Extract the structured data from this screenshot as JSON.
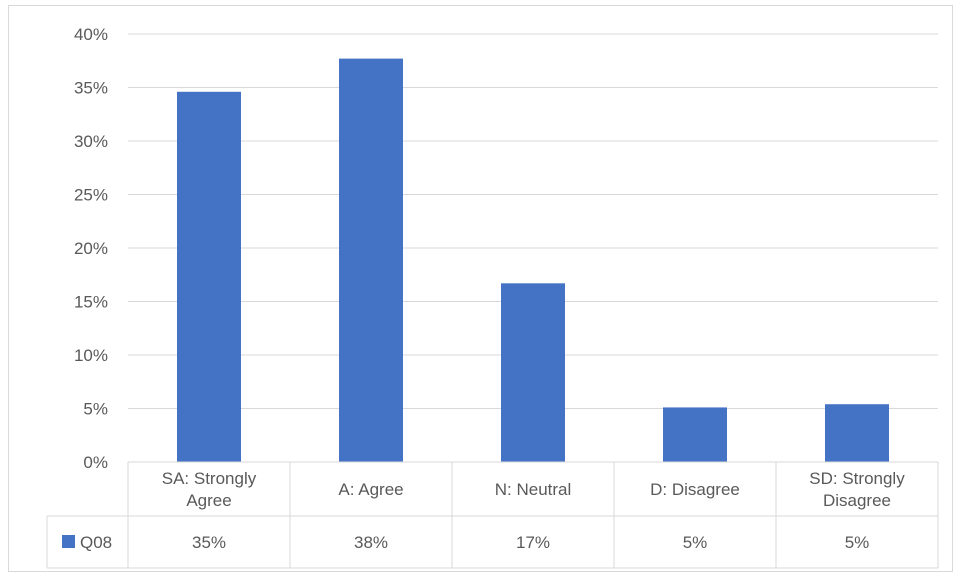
{
  "chart_data": {
    "type": "bar",
    "categories": [
      [
        "SA: Strongly",
        "Agree"
      ],
      [
        "A: Agree"
      ],
      [
        "N: Neutral"
      ],
      [
        "D: Disagree"
      ],
      [
        "SD: Strongly",
        "Disagree"
      ]
    ],
    "series": [
      {
        "name": "Q08",
        "values": [
          34.6,
          37.7,
          16.7,
          5.1,
          5.4
        ],
        "table_labels": [
          "35%",
          "38%",
          "17%",
          "5%",
          "5%"
        ]
      }
    ],
    "yticks": [
      "0%",
      "5%",
      "10%",
      "15%",
      "20%",
      "25%",
      "30%",
      "35%",
      "40%"
    ],
    "ylim": [
      0,
      40
    ],
    "grid": true,
    "legend": "data-table",
    "colors": {
      "bar": "#4472c4",
      "grid": "#d9d9d9",
      "text": "#595959"
    }
  }
}
